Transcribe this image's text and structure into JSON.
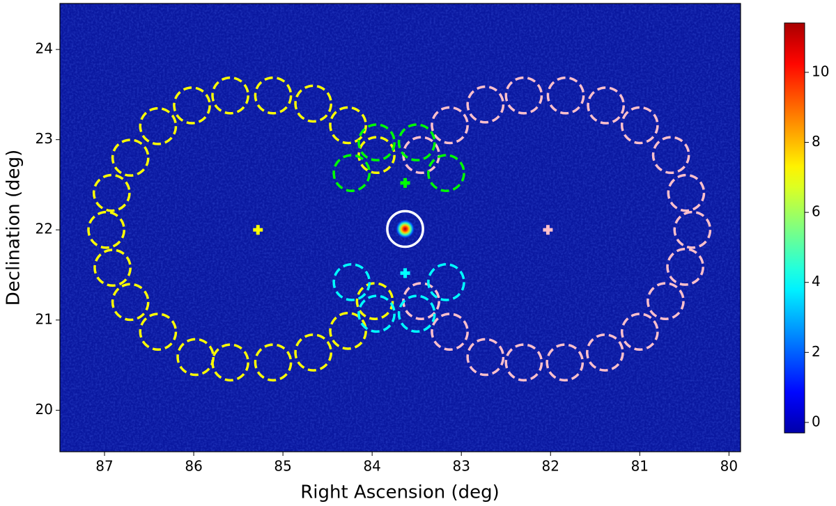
{
  "chart_data": {
    "type": "skymap",
    "xlabel": "Right Ascension (deg)",
    "ylabel": "Declination (deg)",
    "xlim": [
      87.5,
      79.87
    ],
    "ylim": [
      19.54,
      24.51
    ],
    "xticks": [
      87,
      86,
      85,
      84,
      83,
      82,
      81,
      80
    ],
    "yticks": [
      20,
      21,
      22,
      23,
      24
    ],
    "colormap": "jet",
    "colorbar": {
      "lim": [
        -0.3,
        11.41
      ],
      "ticks": [
        0,
        2,
        4,
        6,
        8,
        10
      ]
    },
    "regions": [
      {
        "color": "#ffff00",
        "radius": 0.2,
        "ra": [
          86.92,
          86.98,
          86.91,
          86.71,
          86.4,
          85.98,
          85.59,
          85.11,
          84.66,
          84.27,
          83.97,
          83.95,
          84.27,
          84.66,
          85.11,
          85.59,
          86.02,
          86.4,
          86.71
        ],
        "dec": [
          22.41,
          22.0,
          21.58,
          21.2,
          20.87,
          20.59,
          20.53,
          20.53,
          20.64,
          20.88,
          21.21,
          22.83,
          23.16,
          23.4,
          23.49,
          23.49,
          23.38,
          23.15,
          22.8
        ]
      },
      {
        "color": "#ffc0cb",
        "radius": 0.2,
        "ra": [
          83.45,
          83.13,
          82.73,
          82.3,
          81.83,
          81.38,
          81.0,
          80.65,
          80.48,
          80.41,
          80.49,
          80.71,
          81.0,
          81.39,
          81.84,
          82.3,
          82.73,
          83.13,
          83.45
        ],
        "dec": [
          22.83,
          23.16,
          23.39,
          23.49,
          23.49,
          23.38,
          23.16,
          22.83,
          22.41,
          22.0,
          21.59,
          21.21,
          20.87,
          20.64,
          20.53,
          20.53,
          20.59,
          20.87,
          21.21
        ]
      },
      {
        "color": "#00ff00",
        "radius": 0.2,
        "ra": [
          83.95,
          83.5,
          84.23,
          83.17
        ],
        "dec": [
          22.97,
          22.97,
          22.63,
          22.63
        ]
      },
      {
        "color": "#00ffff",
        "radius": 0.2,
        "ra": [
          84.23,
          83.17,
          83.95,
          83.5
        ],
        "dec": [
          21.42,
          21.42,
          21.07,
          21.07
        ]
      }
    ],
    "markers": {
      "color": [
        "#ffff00",
        "#ffc0cb",
        "#00ff00",
        "#00ffff"
      ],
      "ra": [
        85.28,
        82.03,
        83.63,
        83.63
      ],
      "dec": [
        22.0,
        22.0,
        22.52,
        21.52
      ]
    },
    "source": {
      "ra": 83.63,
      "dec": 22.01,
      "radius": 0.2,
      "color": "#ffffff"
    }
  }
}
